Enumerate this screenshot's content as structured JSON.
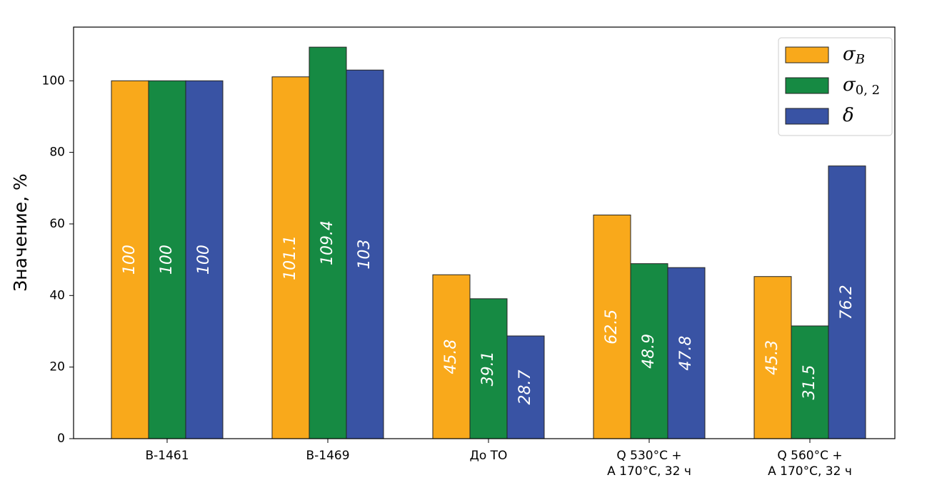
{
  "chart_data": {
    "type": "bar",
    "y_label": "Значение, %",
    "categories": [
      "В-1461",
      "В-1469",
      "До ТО",
      "Q 530°C +\nА 170°C, 32 ч",
      "Q 560°C +\nА 170°C, 32 ч"
    ],
    "series": [
      {
        "name": "σB",
        "color": "#f9a91b",
        "values": [
          100,
          101.1,
          45.8,
          62.5,
          45.3
        ]
      },
      {
        "name": "σ0, 2",
        "color": "#168a43",
        "values": [
          100,
          109.4,
          39.1,
          48.9,
          31.5
        ]
      },
      {
        "name": "δ",
        "color": "#3953a4",
        "values": [
          100,
          103,
          28.7,
          47.8,
          76.2
        ]
      }
    ],
    "ylim": [
      0,
      115
    ],
    "yticks": [
      0,
      20,
      40,
      60,
      80,
      100
    ],
    "grid": false,
    "legend": "upper right"
  }
}
